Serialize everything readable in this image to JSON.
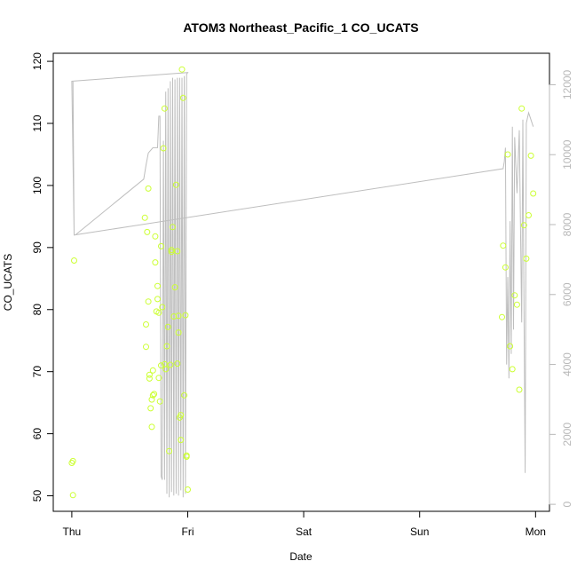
{
  "chart_data": {
    "type": "scatter",
    "title": "ATOM3 Northeast_Pacific_1 CO_UCATS",
    "xlabel": "Date",
    "ylabel": "CO_UCATS",
    "x_ticks": [
      "Thu",
      "Fri",
      "Sat",
      "Sun",
      "Mon"
    ],
    "x_tick_values": [
      0,
      1,
      2,
      3,
      4
    ],
    "xlim": [
      -0.16,
      4.12
    ],
    "ylim": [
      47.5,
      121.3
    ],
    "y_ticks": [
      50,
      60,
      70,
      80,
      90,
      100,
      110,
      120
    ],
    "y2lim": [
      -200,
      12900
    ],
    "y2_ticks": [
      0,
      2000,
      4000,
      6000,
      8000,
      10000,
      12000
    ],
    "grid": false,
    "colors": {
      "points": "#ccff33",
      "line": "#bebebe",
      "right_axis": "#b8b8b8"
    },
    "series": [
      {
        "type": "scatter",
        "points": [
          [
            0.0,
            55.3
          ],
          [
            0.01,
            55.6
          ],
          [
            0.01,
            50.1
          ],
          [
            0.02,
            87.9
          ],
          [
            0.63,
            94.8
          ],
          [
            0.64,
            77.6
          ],
          [
            0.64,
            74.0
          ],
          [
            0.65,
            92.5
          ],
          [
            0.66,
            81.3
          ],
          [
            0.66,
            99.5
          ],
          [
            0.67,
            69.5
          ],
          [
            0.67,
            68.9
          ],
          [
            0.68,
            64.1
          ],
          [
            0.69,
            61.1
          ],
          [
            0.69,
            65.5
          ],
          [
            0.7,
            70.2
          ],
          [
            0.7,
            66.2
          ],
          [
            0.71,
            66.4
          ],
          [
            0.72,
            91.8
          ],
          [
            0.72,
            87.6
          ],
          [
            0.73,
            79.7
          ],
          [
            0.74,
            81.7
          ],
          [
            0.74,
            83.8
          ],
          [
            0.75,
            79.5
          ],
          [
            0.75,
            69.0
          ],
          [
            0.76,
            65.2
          ],
          [
            0.77,
            90.2
          ],
          [
            0.77,
            71.0
          ],
          [
            0.78,
            80.4
          ],
          [
            0.79,
            106.0
          ],
          [
            0.8,
            112.4
          ],
          [
            0.8,
            71.2
          ],
          [
            0.81,
            70.4
          ],
          [
            0.82,
            74.1
          ],
          [
            0.83,
            77.2
          ],
          [
            0.84,
            57.2
          ],
          [
            0.85,
            71.1
          ],
          [
            0.86,
            89.3
          ],
          [
            0.86,
            89.6
          ],
          [
            0.87,
            93.3
          ],
          [
            0.88,
            78.9
          ],
          [
            0.89,
            83.6
          ],
          [
            0.9,
            100.1
          ],
          [
            0.91,
            71.3
          ],
          [
            0.91,
            89.4
          ],
          [
            0.92,
            79.0
          ],
          [
            0.92,
            76.3
          ],
          [
            0.93,
            62.6
          ],
          [
            0.94,
            63.0
          ],
          [
            0.94,
            59.0
          ],
          [
            0.95,
            118.7
          ],
          [
            0.96,
            114.1
          ],
          [
            0.97,
            66.2
          ],
          [
            0.98,
            79.1
          ],
          [
            0.99,
            56.3
          ],
          [
            0.99,
            56.5
          ],
          [
            1.0,
            51.0
          ],
          [
            3.71,
            78.8
          ],
          [
            3.72,
            90.3
          ],
          [
            3.74,
            86.8
          ],
          [
            3.76,
            105.0
          ],
          [
            3.78,
            74.1
          ],
          [
            3.8,
            70.4
          ],
          [
            3.82,
            82.3
          ],
          [
            3.84,
            80.8
          ],
          [
            3.86,
            67.1
          ],
          [
            3.88,
            112.4
          ],
          [
            3.9,
            93.6
          ],
          [
            3.92,
            88.2
          ],
          [
            3.94,
            95.2
          ],
          [
            3.96,
            104.8
          ],
          [
            3.98,
            98.7
          ]
        ]
      },
      {
        "type": "line",
        "axis": "right",
        "points": [
          [
            0.0,
            12100
          ],
          [
            0.01,
            12100
          ],
          [
            0.02,
            7700
          ],
          [
            0.03,
            7700
          ],
          [
            0.62,
            9300
          ],
          [
            0.64,
            9700
          ],
          [
            0.66,
            10050
          ],
          [
            0.7,
            10200
          ],
          [
            0.74,
            10200
          ],
          [
            0.75,
            11100
          ],
          [
            0.76,
            11100
          ],
          [
            0.77,
            800
          ],
          [
            0.78,
            700
          ],
          [
            0.79,
            10400
          ],
          [
            0.8,
            700
          ],
          [
            0.81,
            11800
          ],
          [
            0.82,
            300
          ],
          [
            0.83,
            11900
          ],
          [
            0.84,
            200
          ],
          [
            0.85,
            12100
          ],
          [
            0.86,
            350
          ],
          [
            0.87,
            12200
          ],
          [
            0.88,
            250
          ],
          [
            0.89,
            12150
          ],
          [
            0.9,
            300
          ],
          [
            0.91,
            12200
          ],
          [
            0.92,
            250
          ],
          [
            0.93,
            12200
          ],
          [
            0.94,
            400
          ],
          [
            0.95,
            12200
          ],
          [
            0.96,
            200
          ],
          [
            0.97,
            12250
          ],
          [
            0.98,
            300
          ],
          [
            0.99,
            12300
          ],
          [
            1.0,
            12350
          ],
          [
            0.0,
            12100
          ],
          [
            0.02,
            7700
          ],
          [
            3.72,
            9600
          ],
          [
            3.73,
            9800
          ],
          [
            3.74,
            10200
          ],
          [
            3.75,
            4000
          ],
          [
            3.76,
            6500
          ],
          [
            3.77,
            3600
          ],
          [
            3.78,
            8100
          ],
          [
            3.79,
            4300
          ],
          [
            3.8,
            10800
          ],
          [
            3.81,
            5000
          ],
          [
            3.82,
            10500
          ],
          [
            3.84,
            8900
          ],
          [
            3.86,
            10700
          ],
          [
            3.88,
            5200
          ],
          [
            3.89,
            11000
          ],
          [
            3.9,
            5500
          ],
          [
            3.91,
            900
          ],
          [
            3.92,
            10900
          ],
          [
            3.94,
            11200
          ],
          [
            3.96,
            11000
          ],
          [
            3.98,
            10800
          ]
        ]
      }
    ]
  }
}
